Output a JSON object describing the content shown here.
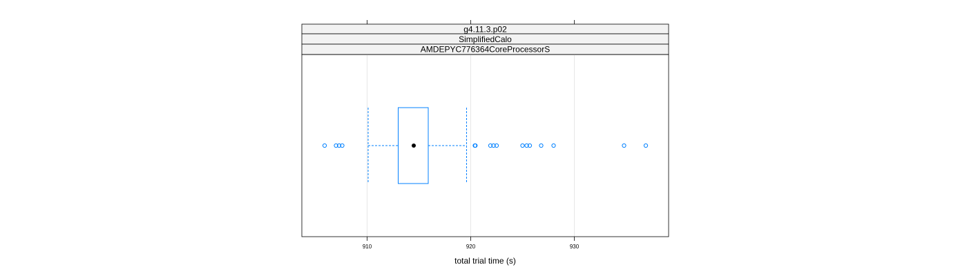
{
  "chart_data": {
    "type": "boxplot",
    "strips": [
      "g4.11.3.p02",
      "SimplifiedCalo",
      "AMDEPYC776364CoreProcessorS"
    ],
    "xlabel": "total trial time (s)",
    "xlim": [
      903.7,
      939.1
    ],
    "xticks": [
      910,
      920,
      930
    ],
    "xtick_labels": [
      "910",
      "920",
      "930"
    ],
    "grid": true,
    "box": {
      "whisker_low": 910.1,
      "q1": 913.0,
      "median": 914.5,
      "q3": 915.9,
      "whisker_high": 919.6
    },
    "outliers": [
      905.9,
      907.0,
      907.3,
      907.6,
      920.4,
      920.45,
      921.9,
      922.2,
      922.5,
      925.0,
      925.4,
      925.7,
      926.8,
      928.0,
      934.8,
      936.9
    ],
    "colors": {
      "box": "#0080ff",
      "median": "#000000",
      "grid": "#e6e6e6",
      "strip_bg": "#f2f2f2",
      "frame": "#000000"
    }
  }
}
